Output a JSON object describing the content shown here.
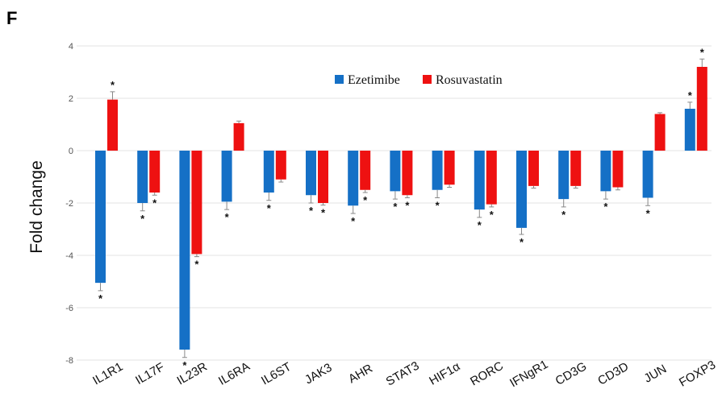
{
  "panel_label": "F",
  "chart_data": {
    "type": "bar",
    "ylabel": "Fold change",
    "xlabel": "",
    "ylim": [
      -8,
      4
    ],
    "yticks": [
      4,
      2,
      0,
      -2,
      -4,
      -6,
      -8
    ],
    "grid": true,
    "legend_position": "top-center",
    "categories": [
      "IL1R1",
      "IL17F",
      "IL23R",
      "IL6RA",
      "IL6ST",
      "JAK3",
      "AHR",
      "STAT3",
      "HIF1α",
      "RORC",
      "IFNgR1",
      "CD3G",
      "CD3D",
      "JUN",
      "FOXP3"
    ],
    "series": [
      {
        "name": "Ezetimibe",
        "color": "#1570c6",
        "values": [
          -5.05,
          -2.0,
          -7.6,
          -1.95,
          -1.6,
          -1.7,
          -2.1,
          -1.55,
          -1.5,
          -2.25,
          -2.95,
          -1.85,
          -1.55,
          -1.8,
          1.6
        ],
        "errors": [
          0.3,
          0.3,
          0.3,
          0.3,
          0.3,
          0.3,
          0.3,
          0.3,
          0.3,
          0.3,
          0.25,
          0.3,
          0.3,
          0.3,
          0.25
        ],
        "significant": [
          true,
          true,
          true,
          true,
          true,
          true,
          true,
          true,
          true,
          true,
          true,
          true,
          true,
          true,
          true
        ]
      },
      {
        "name": "Rosuvastatin",
        "color": "#ee1111",
        "values": [
          1.95,
          -1.6,
          -3.95,
          1.05,
          -1.1,
          -2.0,
          -1.5,
          -1.7,
          -1.3,
          -2.05,
          -1.35,
          -1.35,
          -1.4,
          1.4,
          3.2
        ],
        "errors": [
          0.3,
          0.1,
          0.1,
          0.08,
          0.1,
          0.08,
          0.1,
          0.1,
          0.1,
          0.1,
          0.08,
          0.08,
          0.1,
          0.05,
          0.3
        ],
        "significant": [
          true,
          true,
          true,
          false,
          false,
          true,
          true,
          true,
          false,
          true,
          false,
          false,
          false,
          false,
          true
        ]
      }
    ]
  }
}
